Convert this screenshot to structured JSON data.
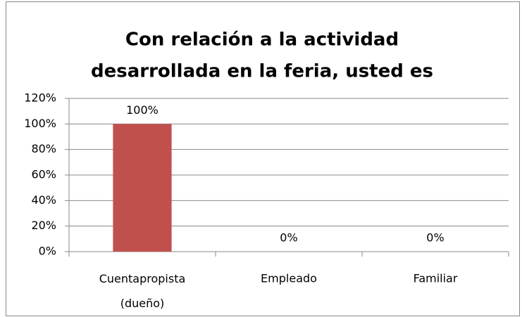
{
  "chart_data": {
    "type": "bar",
    "title": [
      "Con relación a la actividad",
      "desarrollada en la feria, usted es"
    ],
    "categories": [
      "Cuentapropista (dueño)",
      "Empleado",
      "Familiar"
    ],
    "values": [
      100,
      0,
      0
    ],
    "value_labels": [
      "100%",
      "0%",
      "0%"
    ],
    "color": "#c0504d",
    "ylim": [
      0,
      120
    ],
    "yticks": [
      {
        "value": 0,
        "label": "0%"
      },
      {
        "value": 20,
        "label": "20%"
      },
      {
        "value": 40,
        "label": "40%"
      },
      {
        "value": 60,
        "label": "60%"
      },
      {
        "value": 80,
        "label": "80%"
      },
      {
        "value": 100,
        "label": "100%"
      },
      {
        "value": 120,
        "label": "120%"
      }
    ],
    "grid": true
  }
}
